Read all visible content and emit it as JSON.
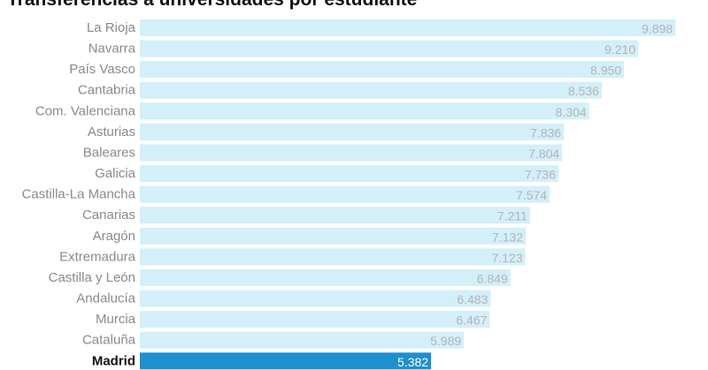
{
  "chart_data": {
    "type": "bar",
    "orientation": "horizontal",
    "title": "Transferencias a universidades por estudiante",
    "categories": [
      "La Rioja",
      "Navarra",
      "País Vasco",
      "Cantabria",
      "Com. Valenciana",
      "Asturias",
      "Baleares",
      "Galicia",
      "Castilla-La Mancha",
      "Canarias",
      "Aragón",
      "Extremadura",
      "Castilla y León",
      "Andalucía",
      "Murcia",
      "Cataluña",
      "Madrid"
    ],
    "values": [
      9898,
      9210,
      8950,
      8536,
      8304,
      7836,
      7804,
      7736,
      7574,
      7211,
      7132,
      7123,
      6849,
      6483,
      6467,
      5989,
      5382
    ],
    "value_labels": [
      "9.898",
      "9.210",
      "8.950",
      "8.536",
      "8.304",
      "7.836",
      "7.804",
      "7.736",
      "7.574",
      "7.211",
      "7.132",
      "7.123",
      "6.849",
      "6.483",
      "6.467",
      "5.989",
      "5.382"
    ],
    "highlight": "Madrid",
    "xlim": [
      0,
      10500
    ],
    "grid": false,
    "legend": "none"
  },
  "colors": {
    "bar": "#d3effa",
    "highlight_bar": "#1e8fcf",
    "label": "#8a8a8a",
    "highlight_label": "#111111",
    "value": "#b4b4b4",
    "highlight_value": "#ffffff"
  }
}
